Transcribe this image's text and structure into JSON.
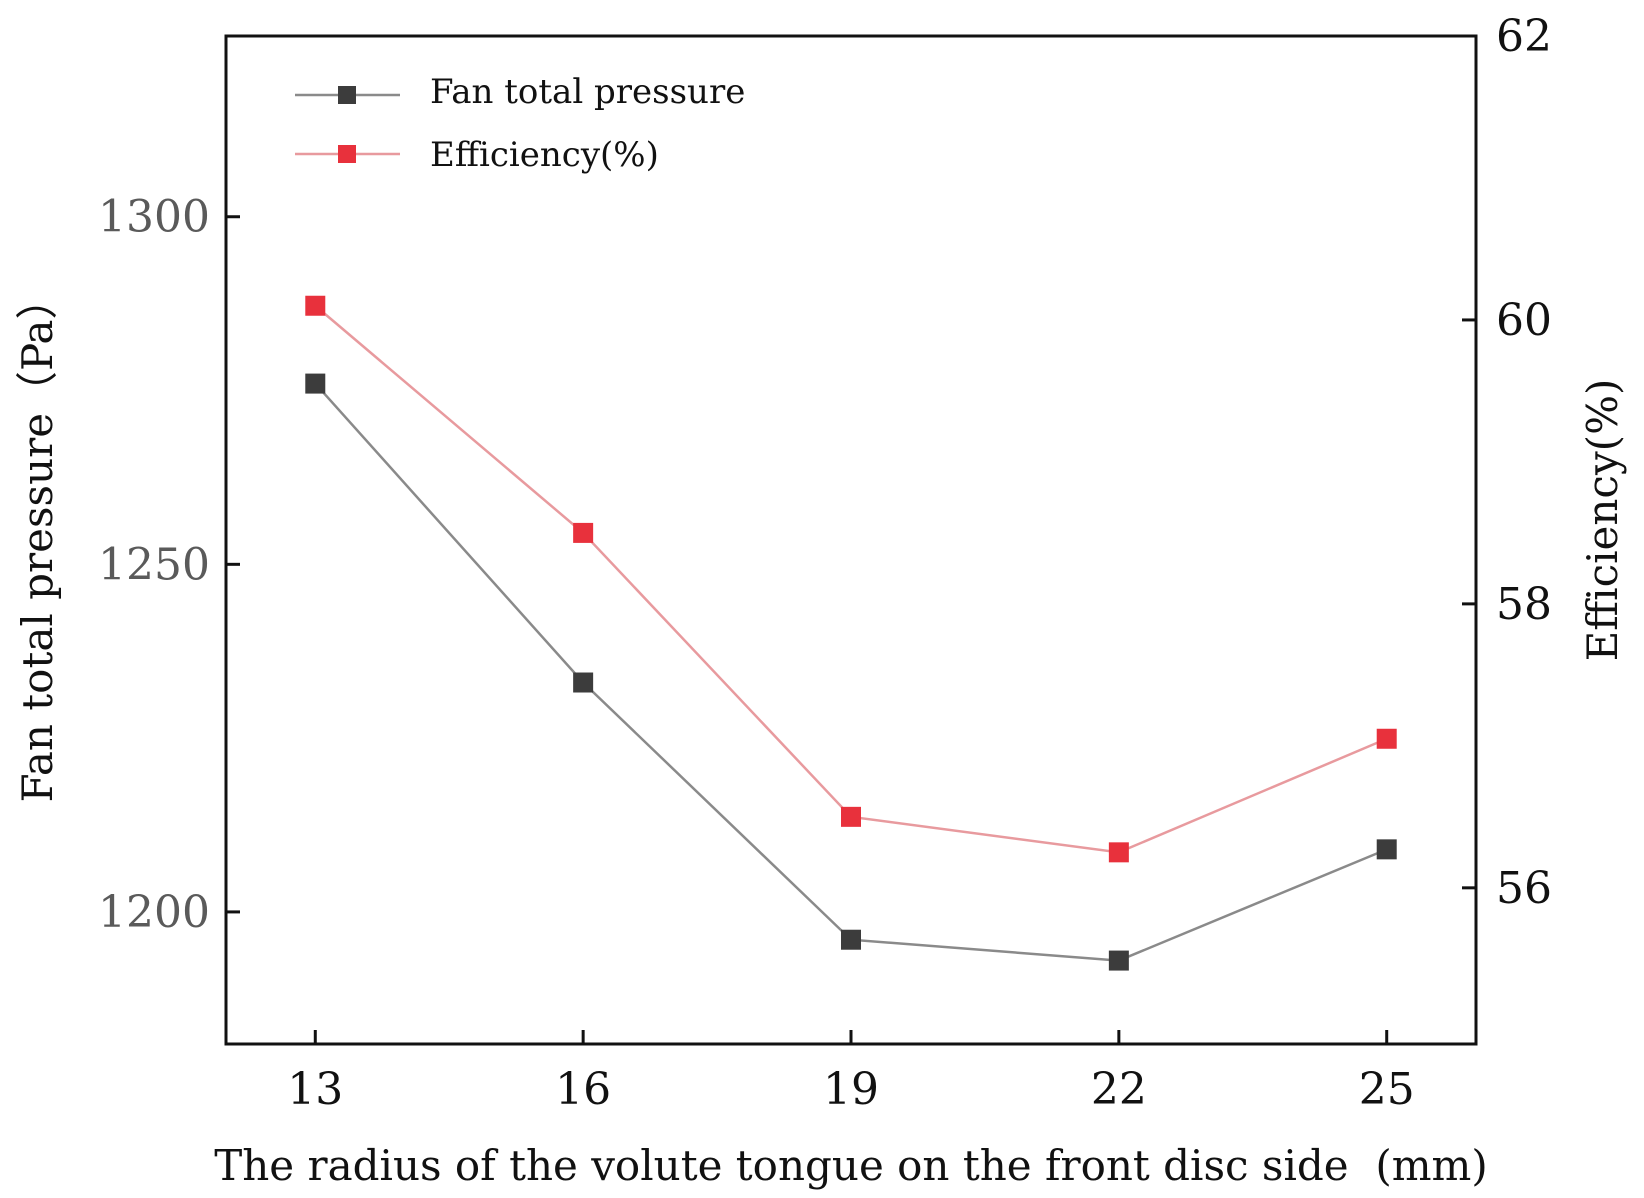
{
  "chart_data": {
    "type": "line",
    "title": "",
    "xlabel": "The radius of the volute tongue on the front disc side  (mm)",
    "ylabel": "Fan total pressure（Pa）",
    "y2label": "Efficiency(%)",
    "x": [
      13,
      16,
      19,
      22,
      25
    ],
    "x_tick_labels": [
      "13",
      "16",
      "19",
      "22",
      "25"
    ],
    "xlim": [
      12,
      26
    ],
    "ylim": [
      1181,
      1326
    ],
    "y_ticks": [
      1200,
      1250,
      1300
    ],
    "y_tick_labels": [
      "1200",
      "1250",
      "1300"
    ],
    "y2lim": [
      54.9,
      62
    ],
    "y2_ticks": [
      56,
      58,
      60,
      62
    ],
    "y2_tick_labels": [
      "56",
      "58",
      "60",
      "62"
    ],
    "grid": false,
    "legend_position": "top-left",
    "series": [
      {
        "name": "Fan total pressure",
        "axis": "left",
        "color": "#3c3c3c",
        "line_color": "#8a8a8a",
        "marker": "square",
        "values": [
          1276,
          1233,
          1196,
          1193,
          1209
        ]
      },
      {
        "name": "Efficiency(%)",
        "axis": "right",
        "color": "#e8313c",
        "line_color": "#e89a9e",
        "marker": "square",
        "values": [
          60.1,
          58.5,
          56.5,
          56.25,
          57.05
        ]
      }
    ]
  }
}
